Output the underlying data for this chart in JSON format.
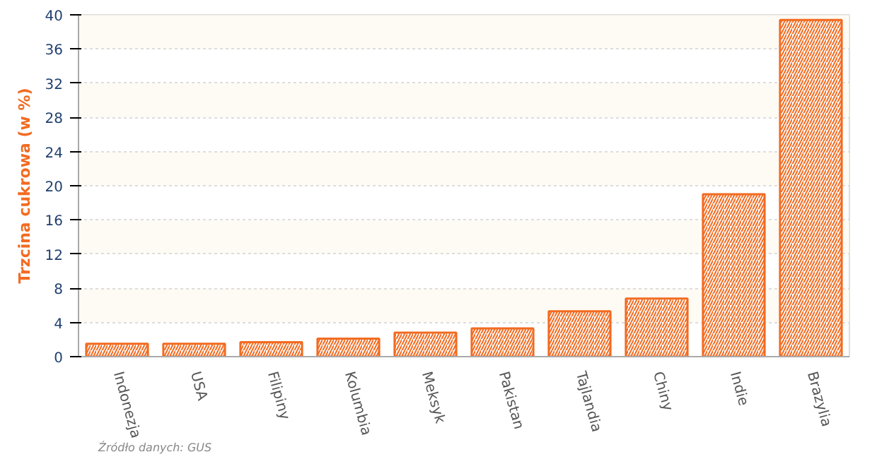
{
  "chart_data": {
    "type": "bar",
    "ylabel": "Trzcina cukrowa (w %)",
    "categories": [
      "Indonezja",
      "USA",
      "Filipiny",
      "Kolumbia",
      "Meksyk",
      "Pakistan",
      "Tajlandia",
      "Chiny",
      "Indie",
      "Brazylia"
    ],
    "values": [
      1.5,
      1.5,
      1.7,
      2.1,
      2.8,
      3.3,
      5.3,
      6.8,
      19.0,
      39.4
    ],
    "color": "#f26b21",
    "ylim": [
      0,
      40
    ],
    "yticks": [
      0,
      4,
      8,
      12,
      16,
      20,
      24,
      28,
      32,
      36,
      40
    ],
    "grid": "y",
    "annotations": [
      "Źródło danych: GUS"
    ]
  }
}
